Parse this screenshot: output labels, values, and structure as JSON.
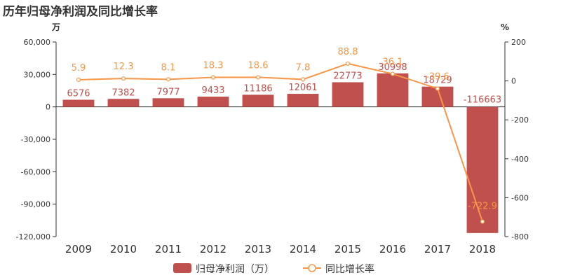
{
  "chart_data": {
    "type": "bar+line",
    "title": "历年归母净利润及同比增长率",
    "y_left_unit": "万",
    "y_right_unit": "%",
    "categories": [
      "2009",
      "2010",
      "2011",
      "2012",
      "2013",
      "2014",
      "2015",
      "2016",
      "2017",
      "2018"
    ],
    "bar_series": {
      "name": "归母净利润（万）",
      "values": [
        6576,
        7382,
        7977,
        9433,
        11186,
        12061,
        22773,
        30998,
        18729,
        -116663
      ],
      "labels": [
        "6576",
        "7382",
        "7977",
        "9433",
        "11186",
        "12061",
        "22773",
        "30998",
        "18729",
        "-116663"
      ]
    },
    "line_series": {
      "name": "同比增长率",
      "values": [
        5.9,
        12.3,
        8.1,
        18.3,
        18.6,
        7.8,
        88.8,
        36.1,
        -39.6,
        -722.9
      ],
      "labels": [
        "5.9",
        "12.3",
        "8.1",
        "18.3",
        "18.6",
        "7.8",
        "88.8",
        "36.1",
        "-39.6",
        "-722.9"
      ]
    },
    "y_left": {
      "min": -120000,
      "max": 60000,
      "ticks": [
        60000,
        30000,
        0,
        -30000,
        -60000,
        -90000,
        -120000
      ],
      "tick_labels": [
        "60,000",
        "30,000",
        "0",
        "-30,000",
        "-60,000",
        "-90,000",
        "-120,000"
      ]
    },
    "y_right": {
      "min": -800,
      "max": 200,
      "ticks": [
        200,
        0,
        -200,
        -400,
        -600,
        -800
      ],
      "tick_labels": [
        "200",
        "0",
        "-200",
        "-400",
        "-600",
        "-800"
      ]
    },
    "colors": {
      "bar": "#c0504d",
      "line": "#f79646",
      "title": "#333333",
      "axis": "#333333"
    },
    "legend_position": "bottom-center"
  }
}
